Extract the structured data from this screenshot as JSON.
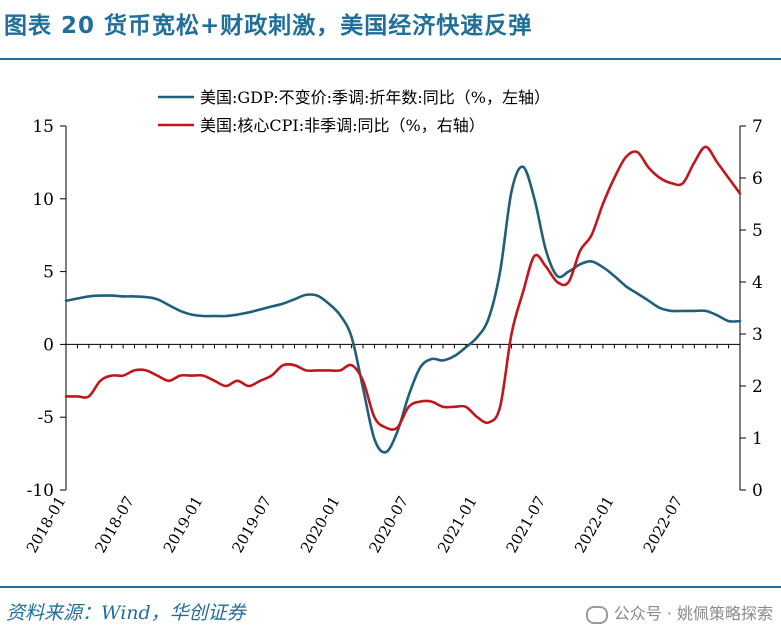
{
  "header": {
    "title": "图表 20  货币宽松+财政刺激，美国经济快速反弹"
  },
  "footer": {
    "source": "资料来源：Wind，华创证券",
    "watermark": "公众号 · 姚佩策略探索"
  },
  "chart_data": {
    "type": "line",
    "title": "",
    "x": [
      "2018-01",
      "2018-02",
      "2018-03",
      "2018-04",
      "2018-05",
      "2018-06",
      "2018-07",
      "2018-08",
      "2018-09",
      "2018-10",
      "2018-11",
      "2018-12",
      "2019-01",
      "2019-02",
      "2019-03",
      "2019-04",
      "2019-05",
      "2019-06",
      "2019-07",
      "2019-08",
      "2019-09",
      "2019-10",
      "2019-11",
      "2019-12",
      "2020-01",
      "2020-02",
      "2020-03",
      "2020-04",
      "2020-05",
      "2020-06",
      "2020-07",
      "2020-08",
      "2020-09",
      "2020-10",
      "2020-11",
      "2020-12",
      "2021-01",
      "2021-02",
      "2021-03",
      "2021-04",
      "2021-05",
      "2021-06",
      "2021-07",
      "2021-08",
      "2021-09",
      "2021-10",
      "2021-11",
      "2021-12",
      "2022-01",
      "2022-02",
      "2022-03",
      "2022-04",
      "2022-05",
      "2022-06",
      "2022-07",
      "2022-08",
      "2022-09",
      "2022-10",
      "2022-11",
      "2022-12"
    ],
    "x_tick_labels": [
      "2018-01",
      "2018-07",
      "2019-01",
      "2019-07",
      "2020-01",
      "2020-07",
      "2021-01",
      "2021-07",
      "2022-01",
      "2022-07"
    ],
    "y_left": {
      "ticks": [
        "15",
        "10",
        "5",
        "0",
        "-5",
        "-10"
      ],
      "lim": [
        -10,
        15
      ]
    },
    "y_right": {
      "ticks": [
        "7",
        "6",
        "5",
        "4",
        "3",
        "2",
        "1",
        "0"
      ],
      "lim": [
        0,
        7
      ]
    },
    "legend": {
      "placement": "top-center"
    },
    "colors": {
      "gdp": "#1f5f7a",
      "cpi": "#c0161c"
    },
    "series": [
      {
        "name": "美国:GDP:不变价:季调:折年数:同比（%，左轴）",
        "axis": "left",
        "values": [
          3.0,
          3.15,
          3.3,
          3.35,
          3.35,
          3.3,
          3.3,
          3.25,
          3.1,
          2.7,
          2.3,
          2.05,
          1.95,
          1.95,
          1.95,
          2.05,
          2.2,
          2.4,
          2.6,
          2.8,
          3.1,
          3.4,
          3.35,
          2.8,
          2.0,
          0.5,
          -3.0,
          -6.5,
          -7.4,
          -6.0,
          -3.5,
          -1.6,
          -1.0,
          -1.1,
          -0.8,
          -0.2,
          0.5,
          1.8,
          5.0,
          10.5,
          12.2,
          10.0,
          6.5,
          4.7,
          5.0,
          5.5,
          5.7,
          5.3,
          4.7,
          4.0,
          3.5,
          3.0,
          2.5,
          2.3,
          2.3,
          2.3,
          2.3,
          2.0,
          1.6,
          1.6
        ]
      },
      {
        "name": "美国:核心CPI:非季调:同比（%，右轴）",
        "axis": "right",
        "values": [
          1.8,
          1.8,
          1.8,
          2.1,
          2.2,
          2.2,
          2.3,
          2.3,
          2.2,
          2.1,
          2.2,
          2.2,
          2.2,
          2.1,
          2.0,
          2.1,
          2.0,
          2.1,
          2.2,
          2.4,
          2.4,
          2.3,
          2.3,
          2.3,
          2.3,
          2.4,
          2.1,
          1.4,
          1.2,
          1.2,
          1.6,
          1.7,
          1.7,
          1.6,
          1.6,
          1.6,
          1.4,
          1.3,
          1.6,
          3.0,
          3.8,
          4.5,
          4.3,
          4.0,
          4.0,
          4.6,
          4.9,
          5.5,
          6.0,
          6.4,
          6.5,
          6.2,
          6.0,
          5.9,
          5.9,
          6.3,
          6.6,
          6.3,
          6.0,
          5.7
        ]
      }
    ]
  }
}
